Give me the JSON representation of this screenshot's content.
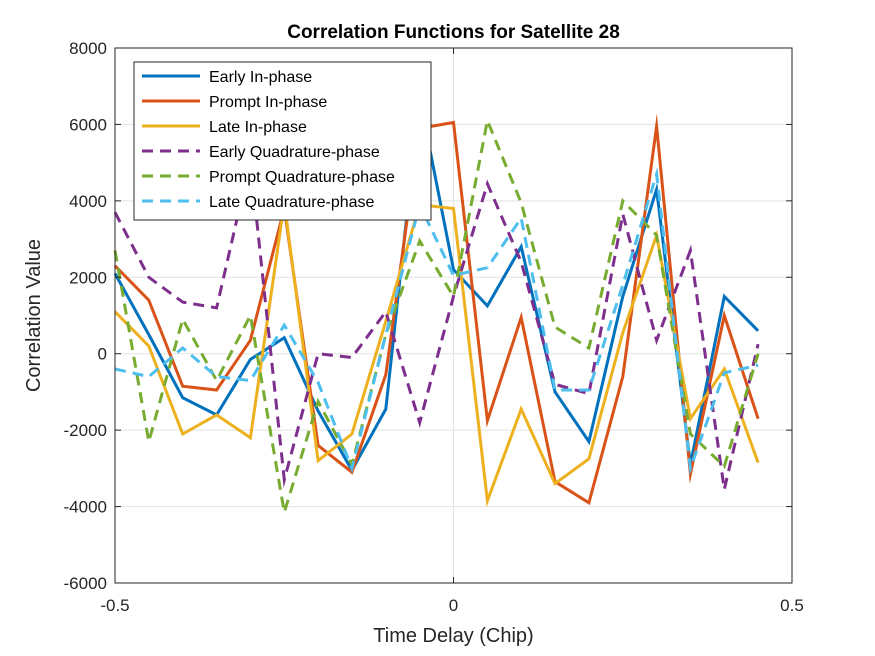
{
  "chart_data": {
    "type": "line",
    "title": "Correlation Functions for Satellite 28",
    "xlabel": "Time Delay (Chip)",
    "ylabel": "Correlation Value",
    "xlim": [
      -0.5,
      0.5
    ],
    "ylim": [
      -6000,
      8000
    ],
    "xticks": [
      -0.5,
      0,
      0.5
    ],
    "xtick_labels": [
      "-0.5",
      "0",
      "0.5"
    ],
    "yticks": [
      -6000,
      -4000,
      -2000,
      0,
      2000,
      4000,
      6000,
      8000
    ],
    "ytick_labels": [
      "-6000",
      "-4000",
      "-2000",
      "0",
      "2000",
      "4000",
      "6000",
      "8000"
    ],
    "grid": true,
    "legend_position": "top-left",
    "x": [
      -0.5,
      -0.45,
      -0.4,
      -0.35,
      -0.3,
      -0.25,
      -0.2,
      -0.15,
      -0.1,
      -0.05,
      0,
      0.05,
      0.1,
      0.15,
      0.2,
      0.25,
      0.3,
      0.35,
      0.4,
      0.45
    ],
    "series": [
      {
        "name": "Early In-phase",
        "color": "#0072BD",
        "dash": "solid",
        "values": [
          2100,
          500,
          -1150,
          -1600,
          -150,
          420,
          -1500,
          -3050,
          -1450,
          6700,
          2200,
          1250,
          2800,
          -1000,
          -2300,
          1500,
          4300,
          -2900,
          1500,
          600
        ]
      },
      {
        "name": "Prompt In-phase",
        "color": "#D95319",
        "dash": "solid",
        "values": [
          2300,
          1400,
          -850,
          -950,
          350,
          3800,
          -2400,
          -3100,
          -550,
          5900,
          6050,
          -1750,
          950,
          -3350,
          -3900,
          -600,
          5950,
          -3150,
          1000,
          -1700
        ]
      },
      {
        "name": "Late In-phase",
        "color": "#EDB120",
        "dash": "solid",
        "values": [
          1100,
          200,
          -2100,
          -1600,
          -2200,
          3950,
          -2800,
          -2100,
          850,
          3900,
          3800,
          -3850,
          -1450,
          -3400,
          -2750,
          550,
          3100,
          -1700,
          -400,
          -2850
        ]
      },
      {
        "name": "Early Quadrature-phase",
        "color": "#7E2F8E",
        "dash": "dashed",
        "values": [
          3700,
          2000,
          1350,
          1200,
          5050,
          -3300,
          0,
          -100,
          1100,
          -1800,
          1500,
          4450,
          2400,
          -800,
          -1050,
          3650,
          350,
          2700,
          -3550,
          250
        ]
      },
      {
        "name": "Prompt Quadrature-phase",
        "color": "#77AC30",
        "dash": "dashed",
        "values": [
          2700,
          -2300,
          900,
          -700,
          1000,
          -4150,
          -1250,
          -2900,
          500,
          2950,
          1500,
          6100,
          3950,
          700,
          150,
          4000,
          3100,
          -2100,
          -2950,
          0
        ]
      },
      {
        "name": "Late Quadrature-phase",
        "color": "#4DBEEE",
        "dash": "dashed",
        "values": [
          -400,
          -600,
          150,
          -600,
          -700,
          750,
          -750,
          -3000,
          500,
          3900,
          2050,
          2250,
          3550,
          -950,
          -950,
          1800,
          4700,
          -3000,
          -500,
          -300
        ]
      }
    ]
  }
}
